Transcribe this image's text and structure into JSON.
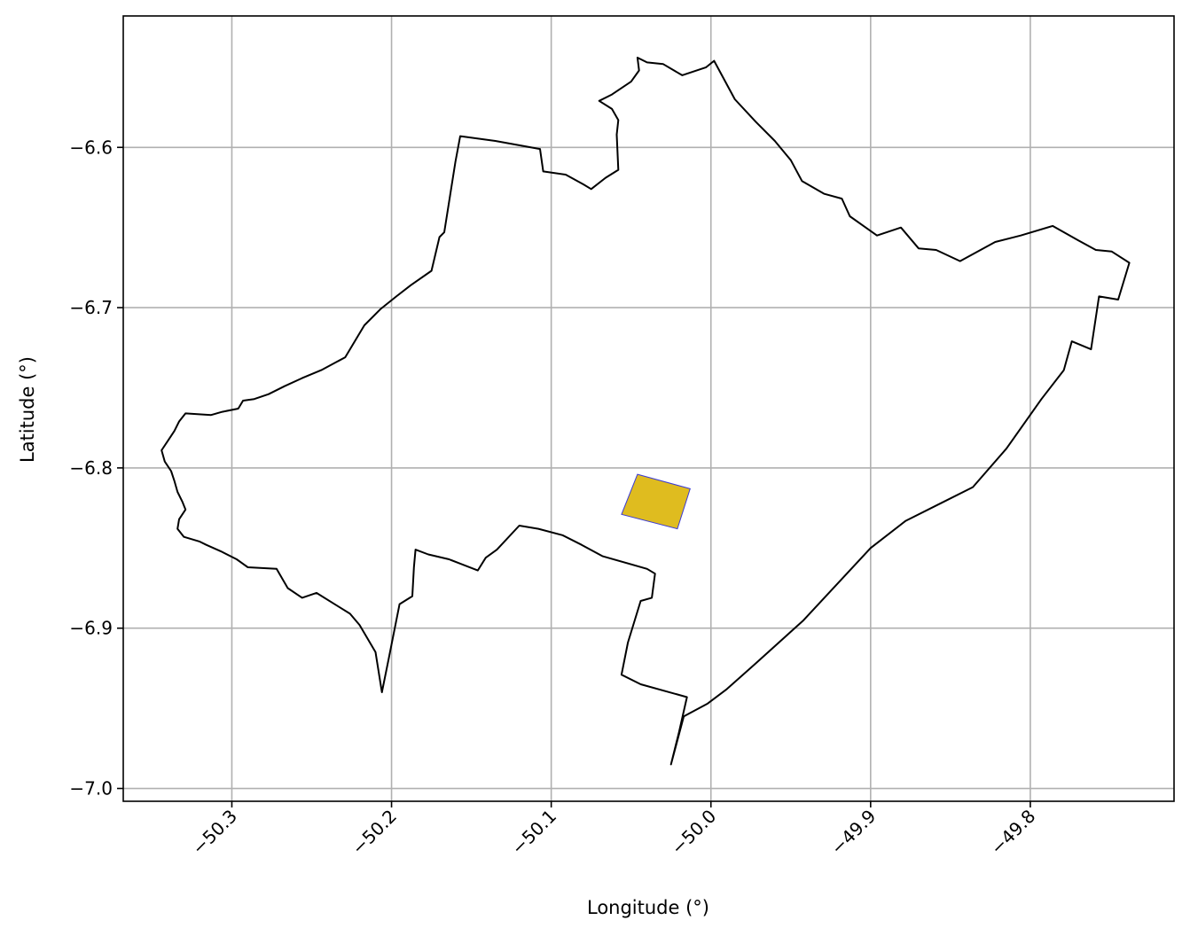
{
  "chart_data": {
    "type": "map",
    "xlabel": "Longitude (°)",
    "ylabel": "Latitude (°)",
    "xlim": [
      -50.368,
      -49.71
    ],
    "ylim": [
      -7.008,
      -6.518
    ],
    "grid": true,
    "x_ticks": [
      {
        "value": -50.3,
        "label": "−50.3"
      },
      {
        "value": -50.2,
        "label": "−50.2"
      },
      {
        "value": -50.1,
        "label": "−50.1"
      },
      {
        "value": -50.0,
        "label": "−50.0"
      },
      {
        "value": -49.9,
        "label": "−49.9"
      },
      {
        "value": -49.8,
        "label": "−49.8"
      }
    ],
    "y_ticks": [
      {
        "value": -6.6,
        "label": "−6.6"
      },
      {
        "value": -6.7,
        "label": "−6.7"
      },
      {
        "value": -6.8,
        "label": "−6.8"
      },
      {
        "value": -6.9,
        "label": "−6.9"
      },
      {
        "value": -7.0,
        "label": "−7.0"
      }
    ],
    "highlight_region": {
      "fill": "#dfbc1f",
      "edge": "#3a3ad6",
      "coords": [
        [
          -50.046,
          -6.804
        ],
        [
          -50.013,
          -6.813
        ],
        [
          -50.021,
          -6.838
        ],
        [
          -50.056,
          -6.829
        ]
      ]
    },
    "boundary_outline": {
      "color": "#000000",
      "coords": [
        [
          -50.272,
          -6.863
        ],
        [
          -50.29,
          -6.862
        ],
        [
          -50.297,
          -6.857
        ],
        [
          -50.307,
          -6.852
        ],
        [
          -50.316,
          -6.848
        ],
        [
          -50.32,
          -6.846
        ],
        [
          -50.33,
          -6.843
        ],
        [
          -50.334,
          -6.838
        ],
        [
          -50.333,
          -6.832
        ],
        [
          -50.329,
          -6.826
        ],
        [
          -50.331,
          -6.821
        ],
        [
          -50.334,
          -6.815
        ],
        [
          -50.336,
          -6.808
        ],
        [
          -50.338,
          -6.802
        ],
        [
          -50.342,
          -6.796
        ],
        [
          -50.344,
          -6.789
        ],
        [
          -50.34,
          -6.783
        ],
        [
          -50.336,
          -6.777
        ],
        [
          -50.333,
          -6.771
        ],
        [
          -50.329,
          -6.766
        ],
        [
          -50.313,
          -6.767
        ],
        [
          -50.306,
          -6.765
        ],
        [
          -50.296,
          -6.763
        ],
        [
          -50.293,
          -6.758
        ],
        [
          -50.286,
          -6.757
        ],
        [
          -50.277,
          -6.754
        ],
        [
          -50.267,
          -6.749
        ],
        [
          -50.256,
          -6.744
        ],
        [
          -50.244,
          -6.739
        ],
        [
          -50.229,
          -6.731
        ],
        [
          -50.217,
          -6.711
        ],
        [
          -50.207,
          -6.701
        ],
        [
          -50.197,
          -6.693
        ],
        [
          -50.188,
          -6.686
        ],
        [
          -50.175,
          -6.677
        ],
        [
          -50.17,
          -6.656
        ],
        [
          -50.167,
          -6.653
        ],
        [
          -50.16,
          -6.609
        ],
        [
          -50.157,
          -6.593
        ],
        [
          -50.135,
          -6.596
        ],
        [
          -50.107,
          -6.601
        ],
        [
          -50.105,
          -6.615
        ],
        [
          -50.091,
          -6.617
        ],
        [
          -50.08,
          -6.623
        ],
        [
          -50.075,
          -6.626
        ],
        [
          -50.066,
          -6.619
        ],
        [
          -50.058,
          -6.614
        ],
        [
          -50.059,
          -6.592
        ],
        [
          -50.058,
          -6.583
        ],
        [
          -50.062,
          -6.576
        ],
        [
          -50.07,
          -6.571
        ],
        [
          -50.062,
          -6.567
        ],
        [
          -50.05,
          -6.559
        ],
        [
          -50.045,
          -6.552
        ],
        [
          -50.046,
          -6.544
        ],
        [
          -50.04,
          -6.547
        ],
        [
          -50.03,
          -6.548
        ],
        [
          -50.018,
          -6.555
        ],
        [
          -50.003,
          -6.55
        ],
        [
          -49.998,
          -6.546
        ],
        [
          -49.985,
          -6.57
        ],
        [
          -49.972,
          -6.584
        ],
        [
          -49.96,
          -6.596
        ],
        [
          -49.95,
          -6.608
        ],
        [
          -49.943,
          -6.621
        ],
        [
          -49.929,
          -6.629
        ],
        [
          -49.918,
          -6.632
        ],
        [
          -49.913,
          -6.643
        ],
        [
          -49.896,
          -6.655
        ],
        [
          -49.881,
          -6.65
        ],
        [
          -49.87,
          -6.663
        ],
        [
          -49.859,
          -6.664
        ],
        [
          -49.844,
          -6.671
        ],
        [
          -49.822,
          -6.659
        ],
        [
          -49.806,
          -6.655
        ],
        [
          -49.786,
          -6.649
        ],
        [
          -49.77,
          -6.658
        ],
        [
          -49.759,
          -6.664
        ],
        [
          -49.749,
          -6.665
        ],
        [
          -49.738,
          -6.672
        ],
        [
          -49.745,
          -6.695
        ],
        [
          -49.757,
          -6.693
        ],
        [
          -49.762,
          -6.726
        ],
        [
          -49.774,
          -6.721
        ],
        [
          -49.779,
          -6.739
        ],
        [
          -49.793,
          -6.757
        ],
        [
          -49.815,
          -6.788
        ],
        [
          -49.836,
          -6.812
        ],
        [
          -49.856,
          -6.822
        ],
        [
          -49.878,
          -6.833
        ],
        [
          -49.9,
          -6.85
        ],
        [
          -49.942,
          -6.895
        ],
        [
          -49.972,
          -6.922
        ],
        [
          -49.99,
          -6.938
        ],
        [
          -50.002,
          -6.947
        ],
        [
          -50.017,
          -6.955
        ],
        [
          -50.025,
          -6.985
        ],
        [
          -50.02,
          -6.965
        ],
        [
          -50.015,
          -6.943
        ],
        [
          -50.044,
          -6.935
        ],
        [
          -50.056,
          -6.929
        ],
        [
          -50.052,
          -6.909
        ],
        [
          -50.044,
          -6.883
        ],
        [
          -50.037,
          -6.881
        ],
        [
          -50.035,
          -6.866
        ],
        [
          -50.04,
          -6.863
        ],
        [
          -50.068,
          -6.855
        ],
        [
          -50.081,
          -6.848
        ],
        [
          -50.093,
          -6.842
        ],
        [
          -50.108,
          -6.838
        ],
        [
          -50.12,
          -6.836
        ],
        [
          -50.134,
          -6.851
        ],
        [
          -50.141,
          -6.856
        ],
        [
          -50.146,
          -6.864
        ],
        [
          -50.164,
          -6.857
        ],
        [
          -50.177,
          -6.854
        ],
        [
          -50.185,
          -6.851
        ],
        [
          -50.186,
          -6.862
        ],
        [
          -50.187,
          -6.88
        ],
        [
          -50.195,
          -6.885
        ],
        [
          -50.202,
          -6.92
        ],
        [
          -50.206,
          -6.94
        ],
        [
          -50.21,
          -6.915
        ],
        [
          -50.22,
          -6.898
        ],
        [
          -50.226,
          -6.891
        ],
        [
          -50.247,
          -6.878
        ],
        [
          -50.256,
          -6.881
        ],
        [
          -50.265,
          -6.875
        ],
        [
          -50.272,
          -6.863
        ]
      ]
    }
  }
}
